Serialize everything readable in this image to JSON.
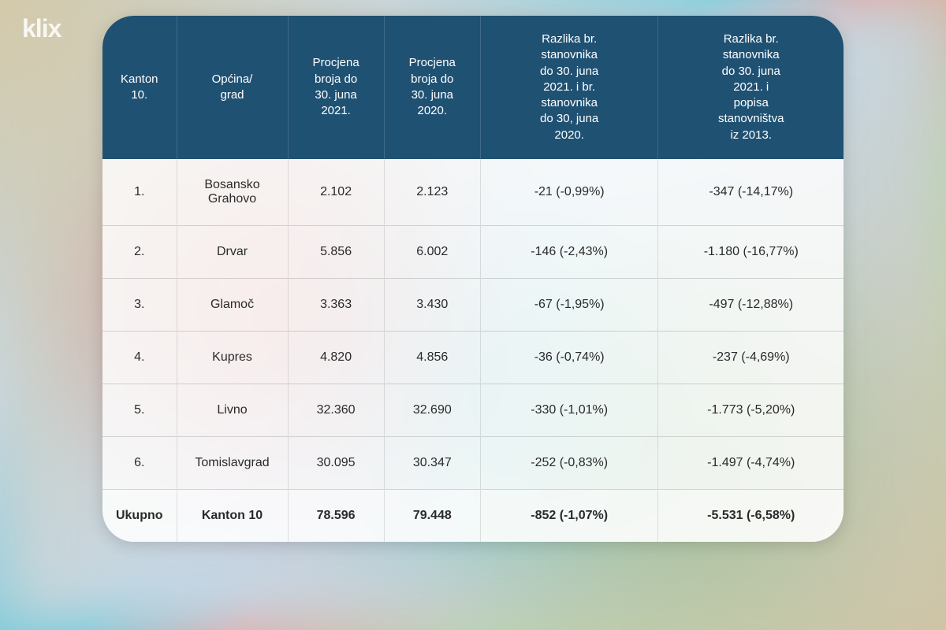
{
  "watermark": "klix",
  "table": {
    "type": "table",
    "header_bg": "#1f5173",
    "header_text_color": "#ffffff",
    "body_bg": "rgba(255,255,255,0.82)",
    "body_text_color": "#2a2a2a",
    "border_color": "rgba(100,100,100,0.25)",
    "header_fontsize": 15,
    "body_fontsize": 16,
    "border_radius": 40,
    "columns": [
      {
        "key": "idx",
        "label": "Kanton\n10.",
        "width_pct": 10,
        "align": "center"
      },
      {
        "key": "name",
        "label": "Općina/\ngrad",
        "width_pct": 15,
        "align": "center"
      },
      {
        "key": "v1",
        "label": "Procjena\nbroja do\n30. juna\n2021.",
        "width_pct": 13,
        "align": "center"
      },
      {
        "key": "v2",
        "label": "Procjena\nbroja do\n30. juna\n2020.",
        "width_pct": 13,
        "align": "center"
      },
      {
        "key": "d1",
        "label": "Razlika br.\nstanovnika\ndo 30. juna\n2021. i br.\nstanovnika\ndo 30, juna\n2020.",
        "width_pct": 24,
        "align": "center"
      },
      {
        "key": "d2",
        "label": "Razlika br.\nstanovnika\ndo 30. juna\n2021. i\npopisa\nstanovništva\niz 2013.",
        "width_pct": 25,
        "align": "center"
      }
    ],
    "rows": [
      {
        "idx": "1.",
        "name": "Bosansko\nGrahovo",
        "v1": "2.102",
        "v2": "2.123",
        "d1": "-21 (-0,99%)",
        "d2": "-347 (-14,17%)"
      },
      {
        "idx": "2.",
        "name": "Drvar",
        "v1": "5.856",
        "v2": "6.002",
        "d1": "-146 (-2,43%)",
        "d2": "-1.180 (-16,77%)"
      },
      {
        "idx": "3.",
        "name": "Glamoč",
        "v1": "3.363",
        "v2": "3.430",
        "d1": "-67 (-1,95%)",
        "d2": "-497 (-12,88%)"
      },
      {
        "idx": "4.",
        "name": "Kupres",
        "v1": "4.820",
        "v2": "4.856",
        "d1": "-36 (-0,74%)",
        "d2": "-237 (-4,69%)"
      },
      {
        "idx": "5.",
        "name": "Livno",
        "v1": "32.360",
        "v2": "32.690",
        "d1": "-330 (-1,01%)",
        "d2": "-1.773 (-5,20%)"
      },
      {
        "idx": "6.",
        "name": "Tomislavgrad",
        "v1": "30.095",
        "v2": "30.347",
        "d1": "-252 (-0,83%)",
        "d2": "-1.497 (-4,74%)"
      }
    ],
    "total": {
      "idx": "Ukupno",
      "name": "Kanton 10",
      "v1": "78.596",
      "v2": "79.448",
      "d1": "-852 (-1,07%)",
      "d2": "-5.531 (-6,58%)"
    }
  }
}
